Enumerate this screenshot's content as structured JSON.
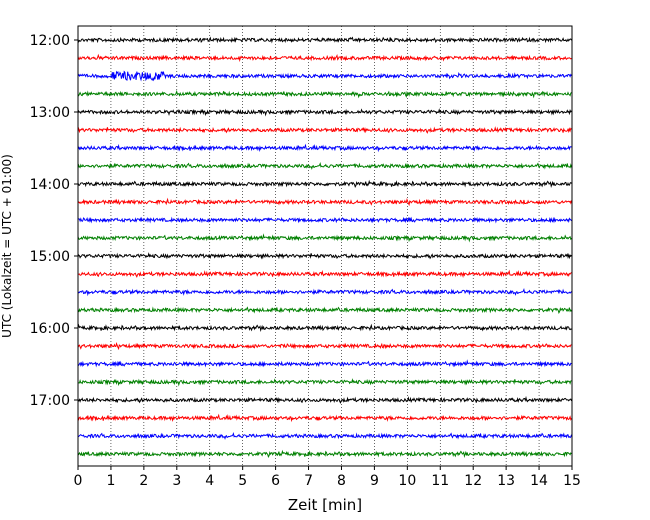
{
  "chart_data": {
    "type": "line",
    "title": "",
    "xlabel": "Zeit  [min]",
    "ylabel": "UTC (Lokalzeit = UTC + 01:00)",
    "xlim": [
      0,
      15
    ],
    "x_ticks": [
      "0",
      "1",
      "2",
      "3",
      "4",
      "5",
      "6",
      "7",
      "8",
      "9",
      "10",
      "11",
      "12",
      "13",
      "14",
      "15"
    ],
    "y_ticks": [
      "12:00",
      "13:00",
      "14:00",
      "15:00",
      "16:00",
      "17:00"
    ],
    "grid": "vertical dotted",
    "trace_interval_minutes": 15,
    "trace_colors": [
      "#000000",
      "#ff0000",
      "#0000ff",
      "#008000"
    ],
    "series": [
      {
        "start": "12:00",
        "events": []
      },
      {
        "start": "12:15",
        "events": []
      },
      {
        "start": "12:30",
        "events": [
          [
            1.0,
            2.6,
            4.5
          ]
        ]
      },
      {
        "start": "12:45",
        "events": []
      },
      {
        "start": "13:00",
        "events": []
      },
      {
        "start": "13:15",
        "events": []
      },
      {
        "start": "13:30",
        "events": [
          [
            13.9,
            14.1,
            2.0
          ]
        ]
      },
      {
        "start": "13:45",
        "events": []
      },
      {
        "start": "14:00",
        "events": [
          [
            13.0,
            13.3,
            2.0
          ]
        ]
      },
      {
        "start": "14:15",
        "events": []
      },
      {
        "start": "14:30",
        "events": []
      },
      {
        "start": "14:45",
        "events": []
      },
      {
        "start": "15:00",
        "events": []
      },
      {
        "start": "15:15",
        "events": []
      },
      {
        "start": "15:30",
        "events": []
      },
      {
        "start": "15:45",
        "events": []
      },
      {
        "start": "16:00",
        "events": []
      },
      {
        "start": "16:15",
        "events": [
          [
            9.1,
            9.3,
            2.0
          ]
        ]
      },
      {
        "start": "16:30",
        "events": []
      },
      {
        "start": "16:45",
        "events": []
      },
      {
        "start": "17:00",
        "events": []
      },
      {
        "start": "17:15",
        "events": []
      },
      {
        "start": "17:30",
        "events": []
      },
      {
        "start": "17:45",
        "events": []
      }
    ]
  }
}
